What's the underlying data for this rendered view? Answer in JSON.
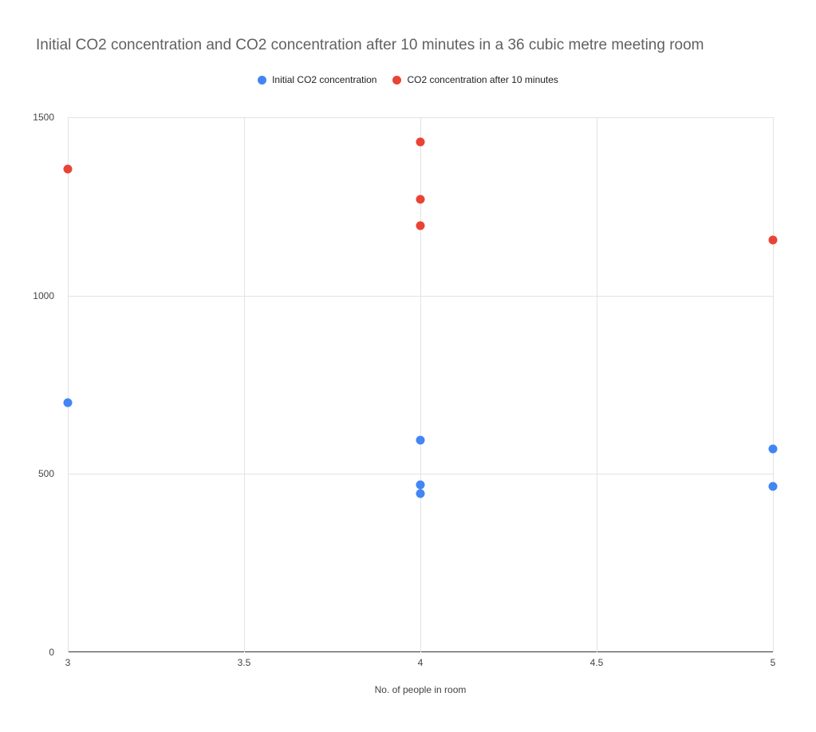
{
  "chart_data": {
    "type": "scatter",
    "title": "Initial CO2 concentration and CO2 concentration after 10 minutes in a 36 cubic metre meeting room",
    "xlabel": "No. of people in room",
    "ylabel": "",
    "xlim": [
      3,
      5
    ],
    "ylim": [
      0,
      1500
    ],
    "x_ticks": [
      3,
      3.5,
      4,
      4.5,
      5
    ],
    "y_ticks": [
      0,
      500,
      1000,
      1500
    ],
    "grid": true,
    "legend_position": "top",
    "series": [
      {
        "name": "Initial CO2 concentration",
        "color": "#4285F4",
        "points": [
          [
            3,
            700
          ],
          [
            4,
            595
          ],
          [
            4,
            470
          ],
          [
            4,
            445
          ],
          [
            5,
            570
          ],
          [
            5,
            465
          ]
        ]
      },
      {
        "name": "CO2 concentration after 10 minutes",
        "color": "#EA4335",
        "points": [
          [
            3,
            1355
          ],
          [
            4,
            1430
          ],
          [
            4,
            1270
          ],
          [
            4,
            1195
          ],
          [
            5,
            1155
          ]
        ]
      }
    ]
  }
}
